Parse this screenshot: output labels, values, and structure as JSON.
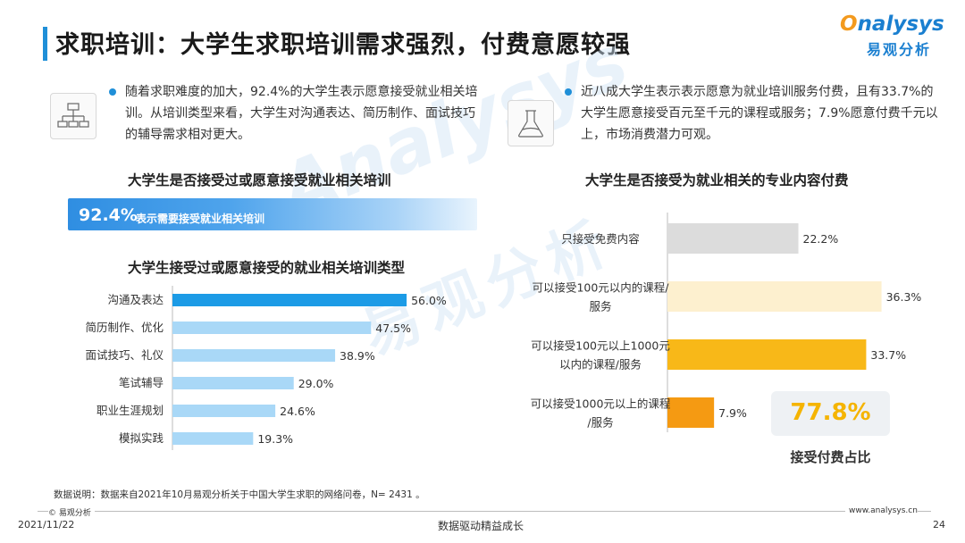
{
  "header": {
    "title": "求职培训：大学生求职培训需求强烈，付费意愿较强",
    "logo_en_first": "O",
    "logo_en_rest": "nalysys",
    "logo_cn": "易观分析"
  },
  "watermark": {
    "en": "Analysys",
    "cn": "易观分析"
  },
  "left_panel": {
    "icon": "org-chart-icon",
    "bullet": "随着求职难度的加大，92.4%的大学生表示愿意接受就业相关培训。从培训类型来看，大学生对沟通表达、简历制作、面试技巧的辅导需求相对更大。"
  },
  "right_panel": {
    "icon": "flask-icon",
    "bullet": "近八成大学生表示表示愿意为就业培训服务付费，且有33.7%的大学生愿意接受百元至千元的课程或服务；7.9%愿意付费千元以上，市场消费潜力可观。"
  },
  "chart_data": [
    {
      "type": "bar",
      "title": "大学生是否接受过或愿意接受就业相关培训",
      "categories": [
        "表示需要接受就业相关培训"
      ],
      "values": [
        92.4
      ],
      "value_labels": [
        "92.4%"
      ],
      "colors": [
        "#3a96e6"
      ]
    },
    {
      "type": "bar",
      "orientation": "horizontal",
      "title": "大学生接受过或愿意接受的就业相关培训类型",
      "categories": [
        "沟通及表达",
        "简历制作、优化",
        "面试技巧、礼仪",
        "笔试辅导",
        "职业生涯规划",
        "模拟实践"
      ],
      "values": [
        56.0,
        47.5,
        38.9,
        29.0,
        24.6,
        19.3
      ],
      "value_labels": [
        "56.0%",
        "47.5%",
        "38.9%",
        "29.0%",
        "24.6%",
        "19.3%"
      ],
      "colors": [
        "#1c9be6",
        "#a9d8f7",
        "#a9d8f7",
        "#a9d8f7",
        "#a9d8f7",
        "#a9d8f7"
      ],
      "xlim": [
        0,
        100
      ]
    },
    {
      "type": "bar",
      "orientation": "horizontal",
      "title": "大学生是否接受为就业相关的专业内容付费",
      "categories": [
        [
          "只接受免费内容"
        ],
        [
          "可以接受100元以内的课程/",
          "服务"
        ],
        [
          "可以接受100元以上1000元",
          "以内的课程/服务"
        ],
        [
          "可以接受1000元以上的课程",
          "/服务"
        ]
      ],
      "values": [
        22.2,
        36.3,
        33.7,
        7.9
      ],
      "value_labels": [
        "22.2%",
        "36.3%",
        "33.7%",
        "7.9%"
      ],
      "colors": [
        "#dcdcdc",
        "#fdf0cf",
        "#f8b818",
        "#f59a12"
      ],
      "xlim": [
        0,
        100
      ],
      "summary": {
        "value": "77.8%",
        "label": "接受付费占比"
      }
    }
  ],
  "footer": {
    "note": "数据说明：数据来自2021年10月易观分析关于中国大学生求职的网络问卷，N= 2431 。",
    "copyright": "© 易观分析",
    "website": "www.analysys.cn",
    "date": "2021/11/22",
    "slogan": "数据驱动精益成长",
    "page": "24"
  }
}
